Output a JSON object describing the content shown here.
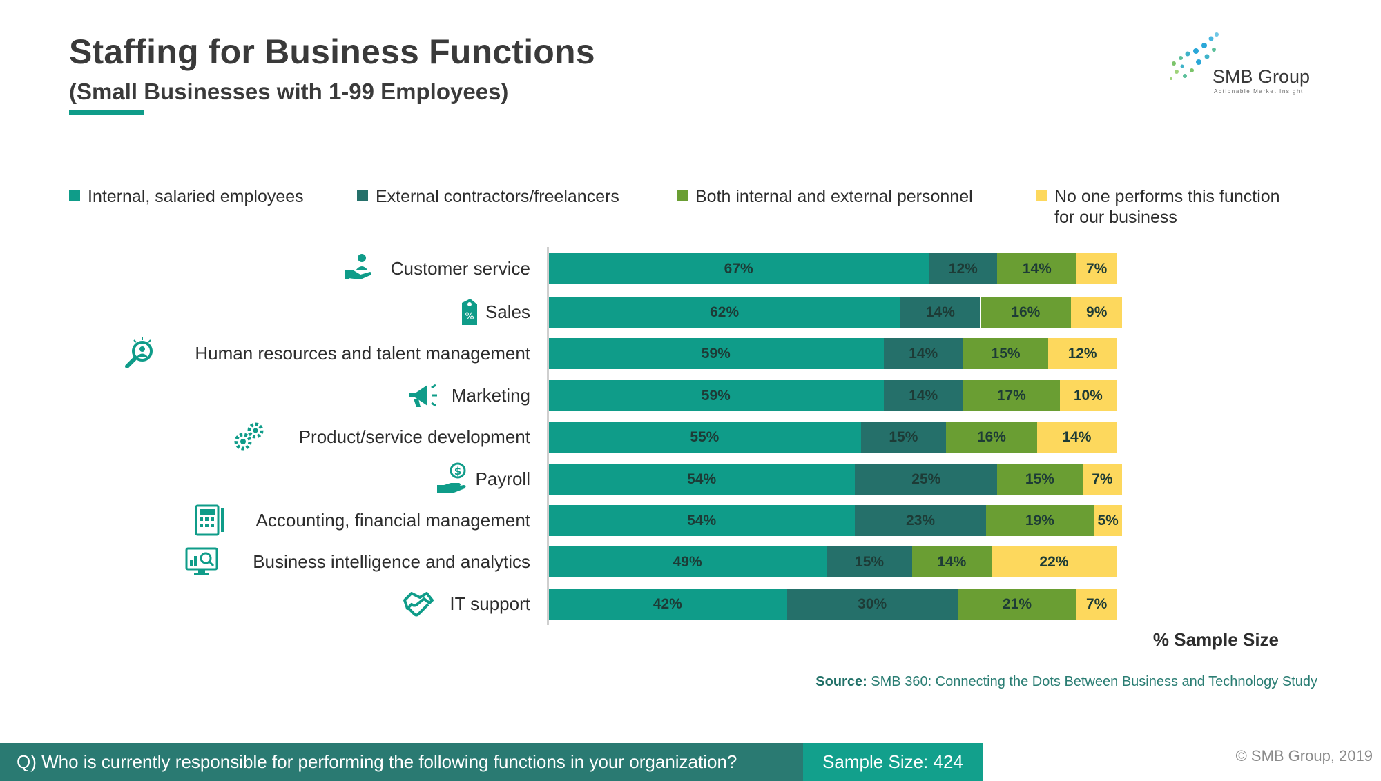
{
  "header": {
    "title": "Staffing for Business Functions",
    "subtitle": "(Small Businesses with 1-99 Employees)"
  },
  "logo": {
    "name": "SMB Group",
    "tagline": "Actionable Market Insight"
  },
  "colors": {
    "internal": "#0f9c89",
    "external": "#25706a",
    "both": "#6a9e33",
    "none": "#fdd85d",
    "accent": "#0f9c89",
    "footer_dark": "#2a7a72",
    "footer_light": "#12a08c"
  },
  "chart_data": {
    "type": "bar",
    "orientation": "horizontal",
    "stacked": true,
    "categories": [
      "Customer service",
      "Sales",
      "Human resources and talent management",
      "Marketing",
      "Product/service development",
      "Payroll",
      "Accounting, financial management",
      "Business intelligence and analytics",
      "IT support"
    ],
    "category_icons": [
      "customer-service-icon",
      "sales-tag-icon",
      "talent-search-icon",
      "megaphone-icon",
      "gears-icon",
      "payroll-hand-dollar-icon",
      "calculator-ledger-icon",
      "analytics-monitor-icon",
      "handshake-icon"
    ],
    "series": [
      {
        "name": "Internal, salaried employees",
        "values": [
          67,
          62,
          59,
          59,
          55,
          54,
          54,
          49,
          42
        ]
      },
      {
        "name": "External contractors/freelancers",
        "values": [
          12,
          14,
          14,
          14,
          15,
          25,
          23,
          15,
          30
        ]
      },
      {
        "name": "Both internal and external personnel",
        "values": [
          14,
          16,
          15,
          17,
          16,
          15,
          19,
          14,
          21
        ]
      },
      {
        "name": "No one performs this function for our business",
        "values": [
          7,
          9,
          12,
          10,
          14,
          7,
          5,
          22,
          7
        ]
      }
    ],
    "legend_lines": [
      [
        "Internal, salaried employees"
      ],
      [
        "External contractors/freelancers"
      ],
      [
        "Both internal and external personnel"
      ],
      [
        "No one performs this function",
        "for our business"
      ]
    ],
    "value_suffix": "%",
    "axis_label": "% Sample Size",
    "grid": false,
    "legend_position": "top"
  },
  "source": {
    "label": "Source:",
    "text": "SMB 360: Connecting the Dots Between Business and Technology Study"
  },
  "footer": {
    "question": "Q) Who is currently responsible for performing the following functions in your organization?",
    "sample_size": "Sample Size: 424",
    "copyright": "© SMB Group, 2019"
  }
}
